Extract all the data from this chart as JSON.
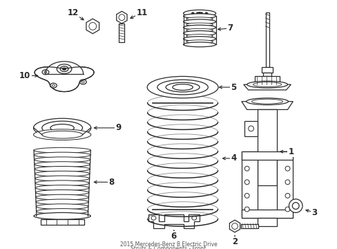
{
  "background_color": "#ffffff",
  "line_color": "#2a2a2a",
  "title_line1": "2015 Mercedes-Benz B Electric Drive",
  "title_line2": "Struts & Components - Front",
  "figsize": [
    4.89,
    3.6
  ],
  "dpi": 100
}
